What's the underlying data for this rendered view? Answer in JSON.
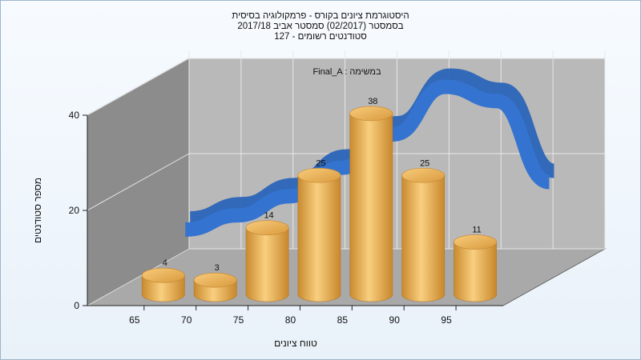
{
  "chart_data": {
    "type": "bar",
    "title_lines": [
      "היסטוגרמת ציונים בקורס - פרמקולוגיה בסיסית",
      "בסמסטר  (02/2017)  סמסטר אביב 2017/18",
      "סטודנטים רשומים - 127"
    ],
    "xlabel": "טווח ציונים",
    "ylabel": "מספר סטודנטים",
    "annotation": "Final_A : במשימה",
    "categories": [
      "65",
      "70",
      "75",
      "80",
      "85",
      "90",
      "95"
    ],
    "values": [
      4,
      3,
      14,
      25,
      38,
      25,
      11
    ],
    "value_labels": [
      "4",
      "3",
      "14",
      "25",
      "38",
      "25",
      "11"
    ],
    "y_ticks": [
      "0",
      "20",
      "40"
    ],
    "y_tick_values": [
      0,
      20,
      40
    ],
    "ylim": [
      0,
      40
    ],
    "overlay_curve": {
      "type": "line",
      "x": [
        65,
        70,
        75,
        80,
        85,
        90,
        95,
        100
      ],
      "y": [
        10,
        13,
        17,
        23,
        30,
        40,
        37,
        20
      ]
    },
    "grid": true,
    "three_d": true,
    "colors": {
      "bar": "#f0b35a",
      "bar_dark": "#c98a2e",
      "bar_top": "#f7c878",
      "curve": "#2e6ec6",
      "back_wall": "#b9b9b9",
      "side_wall": "#8c8c8c",
      "floor": "#a9a9a9"
    }
  }
}
